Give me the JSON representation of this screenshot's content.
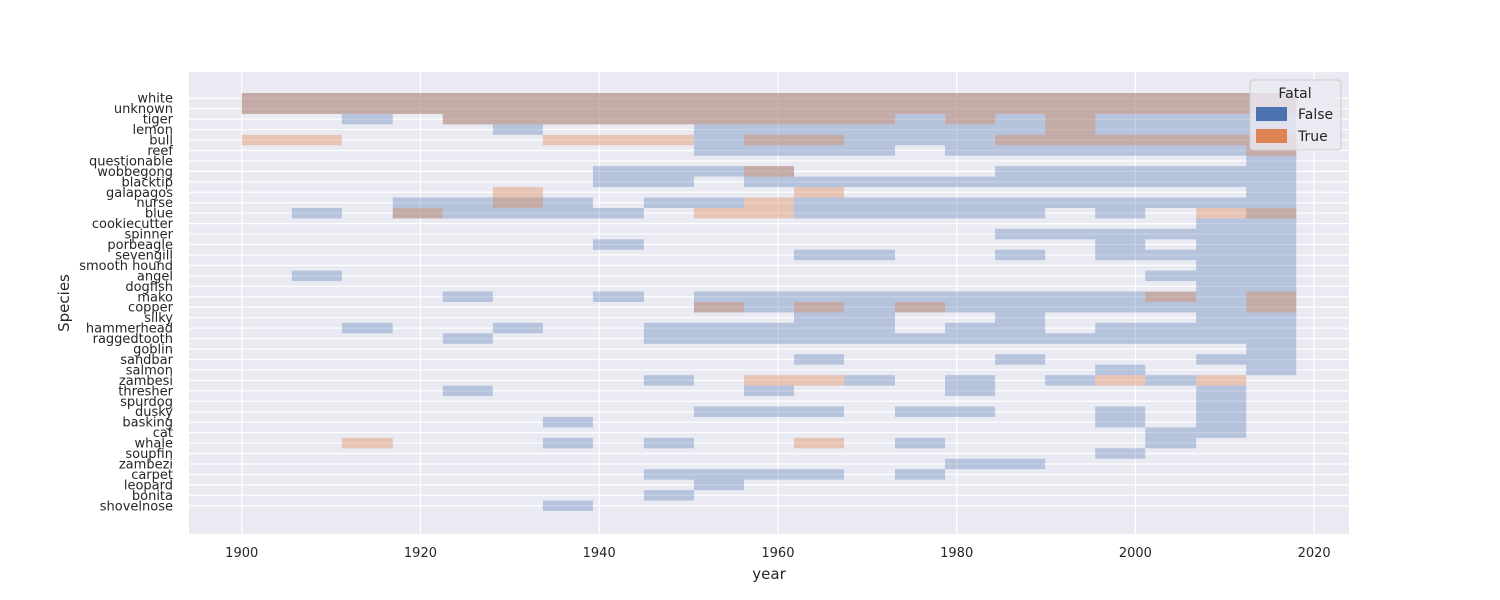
{
  "chart_data": {
    "type": "heatmap",
    "title": "",
    "xlabel": "year",
    "ylabel": "Species",
    "xlim": [
      1894.1,
      2023.9
    ],
    "xticks": [
      1900,
      1920,
      1940,
      1960,
      1980,
      2000,
      2020
    ],
    "xtick_labels": [
      "1900",
      "1920",
      "1940",
      "1960",
      "1980",
      "2000",
      "2020"
    ],
    "bin_edges": [
      1900,
      1905.6,
      1911.2,
      1916.9,
      1922.5,
      1928.1,
      1933.7,
      1939.3,
      1945.0,
      1950.6,
      1956.2,
      1961.8,
      1967.4,
      1973.1,
      1978.7,
      1984.3,
      1989.9,
      1995.5,
      2001.1,
      2006.8,
      2012.4,
      2018.0
    ],
    "categories": [
      "white",
      "unknown",
      "tiger",
      "lemon",
      "bull",
      "reef",
      "questionable",
      "wobbegong",
      "blacktip",
      "galapagos",
      "nurse",
      "blue",
      "cookiecutter",
      "spinner",
      "porbeagle",
      "sevengill",
      "smooth hound",
      "angel",
      "dogfish",
      "mako",
      "copper",
      "silky",
      "hammerhead",
      "raggedtooth",
      "goblin",
      "sandbar",
      "salmon",
      "zambesi",
      "thresher",
      "spurdog",
      "dusky",
      "basking",
      "cat",
      "whale",
      "soupfin",
      "zambezi",
      "carpet",
      "leopard",
      "bonita",
      "shovelnose"
    ],
    "legend": {
      "title": "Fatal",
      "entries": [
        "False",
        "True"
      ],
      "location": "top-right"
    },
    "colors": {
      "False": "#4c72b0",
      "True": "#dd8452",
      "background": "#eaeaf2",
      "grid": "#ffffff"
    },
    "series": [
      {
        "name": "False",
        "rows": [
          {
            "species": "white",
            "bins": [
              [
                0,
                21
              ]
            ]
          },
          {
            "species": "unknown",
            "bins": [
              [
                0,
                21
              ]
            ]
          },
          {
            "species": "tiger",
            "bins": [
              [
                2,
                3
              ],
              [
                4,
                21
              ]
            ]
          },
          {
            "species": "lemon",
            "bins": [
              [
                5,
                6
              ],
              [
                9,
                21
              ]
            ]
          },
          {
            "species": "bull",
            "bins": [
              [
                9,
                21
              ]
            ]
          },
          {
            "species": "reef",
            "bins": [
              [
                9,
                13
              ],
              [
                14,
                21
              ]
            ]
          },
          {
            "species": "questionable",
            "bins": [
              [
                20,
                21
              ]
            ]
          },
          {
            "species": "wobbegong",
            "bins": [
              [
                7,
                11
              ],
              [
                15,
                21
              ]
            ]
          },
          {
            "species": "blacktip",
            "bins": [
              [
                7,
                9
              ],
              [
                10,
                21
              ]
            ]
          },
          {
            "species": "galapagos",
            "bins": [
              [
                20,
                21
              ]
            ]
          },
          {
            "species": "nurse",
            "bins": [
              [
                3,
                7
              ],
              [
                8,
                10
              ],
              [
                11,
                21
              ]
            ]
          },
          {
            "species": "blue",
            "bins": [
              [
                1,
                2
              ],
              [
                3,
                8
              ],
              [
                11,
                16
              ],
              [
                17,
                18
              ],
              [
                20,
                21
              ]
            ]
          },
          {
            "species": "cookiecutter",
            "bins": [
              [
                19,
                21
              ]
            ]
          },
          {
            "species": "spinner",
            "bins": [
              [
                15,
                21
              ]
            ]
          },
          {
            "species": "porbeagle",
            "bins": [
              [
                7,
                8
              ],
              [
                17,
                18
              ],
              [
                19,
                21
              ]
            ]
          },
          {
            "species": "sevengill",
            "bins": [
              [
                11,
                13
              ],
              [
                15,
                16
              ],
              [
                17,
                21
              ]
            ]
          },
          {
            "species": "smooth hound",
            "bins": [
              [
                19,
                21
              ]
            ]
          },
          {
            "species": "angel",
            "bins": [
              [
                1,
                2
              ],
              [
                18,
                21
              ]
            ]
          },
          {
            "species": "dogfish",
            "bins": [
              [
                19,
                21
              ]
            ]
          },
          {
            "species": "mako",
            "bins": [
              [
                4,
                5
              ],
              [
                7,
                8
              ],
              [
                9,
                21
              ]
            ]
          },
          {
            "species": "copper",
            "bins": [
              [
                9,
                21
              ]
            ]
          },
          {
            "species": "silky",
            "bins": [
              [
                11,
                13
              ],
              [
                15,
                16
              ],
              [
                19,
                21
              ]
            ]
          },
          {
            "species": "hammerhead",
            "bins": [
              [
                2,
                3
              ],
              [
                5,
                6
              ],
              [
                8,
                13
              ],
              [
                14,
                16
              ],
              [
                17,
                21
              ]
            ]
          },
          {
            "species": "raggedtooth",
            "bins": [
              [
                4,
                5
              ],
              [
                8,
                21
              ]
            ]
          },
          {
            "species": "goblin",
            "bins": [
              [
                20,
                21
              ]
            ]
          },
          {
            "species": "sandbar",
            "bins": [
              [
                11,
                12
              ],
              [
                15,
                16
              ],
              [
                19,
                21
              ]
            ]
          },
          {
            "species": "salmon",
            "bins": [
              [
                17,
                18
              ],
              [
                20,
                21
              ]
            ]
          },
          {
            "species": "zambesi",
            "bins": [
              [
                8,
                9
              ],
              [
                12,
                13
              ],
              [
                14,
                15
              ],
              [
                16,
                17
              ],
              [
                18,
                19
              ]
            ]
          },
          {
            "species": "thresher",
            "bins": [
              [
                4,
                5
              ],
              [
                10,
                11
              ],
              [
                14,
                15
              ],
              [
                19,
                20
              ]
            ]
          },
          {
            "species": "spurdog",
            "bins": [
              [
                19,
                20
              ]
            ]
          },
          {
            "species": "dusky",
            "bins": [
              [
                9,
                12
              ],
              [
                13,
                15
              ],
              [
                17,
                18
              ],
              [
                19,
                20
              ]
            ]
          },
          {
            "species": "basking",
            "bins": [
              [
                6,
                7
              ],
              [
                17,
                18
              ],
              [
                19,
                20
              ]
            ]
          },
          {
            "species": "cat",
            "bins": [
              [
                18,
                20
              ]
            ]
          },
          {
            "species": "whale",
            "bins": [
              [
                6,
                7
              ],
              [
                8,
                9
              ],
              [
                13,
                14
              ],
              [
                18,
                19
              ]
            ]
          },
          {
            "species": "soupfin",
            "bins": [
              [
                17,
                18
              ]
            ]
          },
          {
            "species": "zambezi",
            "bins": [
              [
                14,
                16
              ]
            ]
          },
          {
            "species": "carpet",
            "bins": [
              [
                8,
                12
              ],
              [
                13,
                14
              ]
            ]
          },
          {
            "species": "leopard",
            "bins": [
              [
                9,
                10
              ]
            ]
          },
          {
            "species": "bonita",
            "bins": [
              [
                8,
                9
              ]
            ]
          },
          {
            "species": "shovelnose",
            "bins": [
              [
                6,
                7
              ]
            ]
          }
        ]
      },
      {
        "name": "True",
        "rows": [
          {
            "species": "white",
            "bins": [
              [
                0,
                21
              ]
            ]
          },
          {
            "species": "unknown",
            "bins": [
              [
                0,
                21
              ]
            ]
          },
          {
            "species": "tiger",
            "bins": [
              [
                4,
                13
              ],
              [
                14,
                15
              ],
              [
                16,
                17
              ]
            ]
          },
          {
            "species": "lemon",
            "bins": [
              [
                16,
                17
              ]
            ]
          },
          {
            "species": "bull",
            "bins": [
              [
                0,
                2
              ],
              [
                6,
                9
              ],
              [
                10,
                12
              ],
              [
                15,
                21
              ]
            ]
          },
          {
            "species": "reef",
            "bins": [
              [
                20,
                21
              ]
            ]
          },
          {
            "species": "wobbegong",
            "bins": [
              [
                10,
                11
              ]
            ]
          },
          {
            "species": "galapagos",
            "bins": [
              [
                5,
                6
              ],
              [
                11,
                12
              ]
            ]
          },
          {
            "species": "nurse",
            "bins": [
              [
                5,
                6
              ],
              [
                10,
                11
              ]
            ]
          },
          {
            "species": "blue",
            "bins": [
              [
                3,
                4
              ],
              [
                9,
                11
              ],
              [
                19,
                21
              ]
            ]
          },
          {
            "species": "mako",
            "bins": [
              [
                18,
                19
              ],
              [
                20,
                21
              ]
            ]
          },
          {
            "species": "copper",
            "bins": [
              [
                9,
                10
              ],
              [
                11,
                12
              ],
              [
                13,
                14
              ],
              [
                20,
                21
              ]
            ]
          },
          {
            "species": "zambesi",
            "bins": [
              [
                10,
                12
              ],
              [
                17,
                18
              ],
              [
                19,
                20
              ]
            ]
          },
          {
            "species": "whale",
            "bins": [
              [
                2,
                3
              ],
              [
                11,
                12
              ]
            ]
          }
        ]
      }
    ]
  }
}
